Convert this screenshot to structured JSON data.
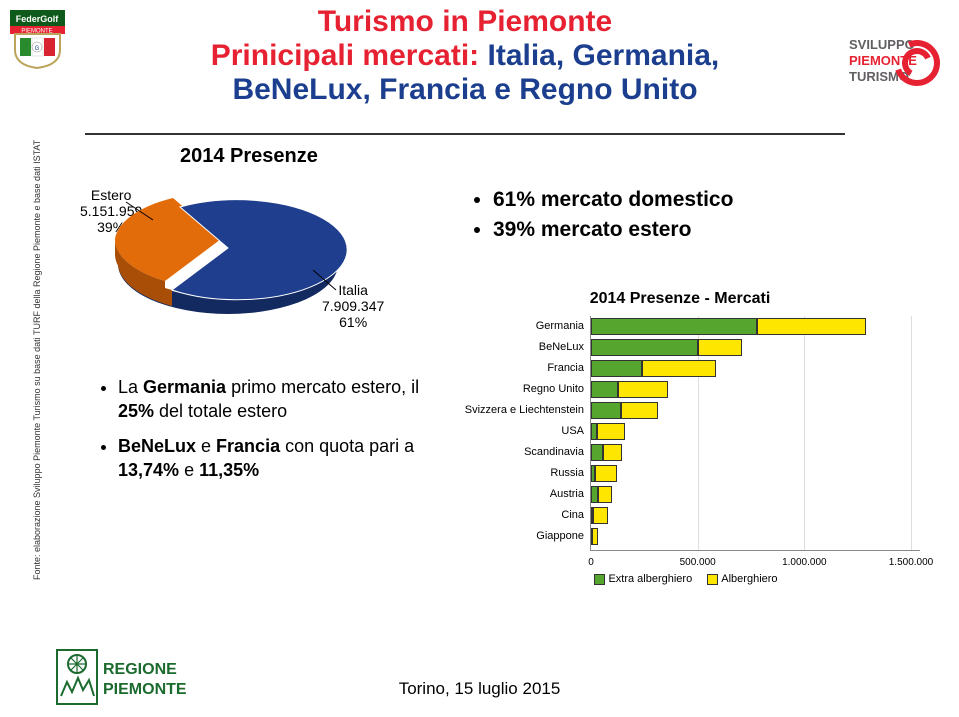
{
  "title": {
    "line1": "Turismo in Piemonte",
    "line2_red": "Prinicipali mercati: ",
    "line2_blue": "Italia, Germania,",
    "line3": "BeNeLux, Francia e Regno Unito"
  },
  "side_caption": "Fonte: elaborazione Sviluppo Piemonte Turismo su base dati TURF della Regione Piemonte e base dati ISTAT",
  "pie": {
    "type": "pie-3d",
    "title": "2014 Presenze",
    "slices": [
      {
        "label": "Estero",
        "value_text": "5.151.959",
        "pct_text": "39%",
        "pct": 39,
        "color": "#e26b0a"
      },
      {
        "label": "Italia",
        "value_text": "7.909.347",
        "pct_text": "61%",
        "pct": 61,
        "color": "#1f3f8e"
      }
    ],
    "background_color": "#ffffff"
  },
  "bullets_right": [
    "61% mercato domestico",
    "39% mercato estero"
  ],
  "bullets_left": [
    {
      "pre": "La ",
      "bold1": "Germania",
      "mid": " primo mercato estero, il ",
      "bold2": "25%",
      "post": " del totale estero"
    },
    {
      "pre": "",
      "bold1": "BeNeLux",
      "mid": " e ",
      "bold2": "Francia",
      "post": " con quota pari a ",
      "bold3": "13,74%",
      "post2": " e ",
      "bold4": "11,35%"
    }
  ],
  "barchart": {
    "type": "bar-horizontal-stacked",
    "title": "2014 Presenze - Mercati",
    "xlim": [
      0,
      1500000
    ],
    "xticks": [
      {
        "v": 0,
        "label": "0"
      },
      {
        "v": 500000,
        "label": "500.000"
      },
      {
        "v": 1000000,
        "label": "1.000.000"
      },
      {
        "v": 1500000,
        "label": "1.500.000"
      }
    ],
    "series": [
      {
        "name": "Extra alberghiero",
        "color": "#56a52e"
      },
      {
        "name": "Alberghiero",
        "color": "#ffe600"
      }
    ],
    "rows": [
      {
        "label": "Germania",
        "extra": 780000,
        "alb": 510000
      },
      {
        "label": "BeNeLux",
        "extra": 500000,
        "alb": 210000
      },
      {
        "label": "Francia",
        "extra": 240000,
        "alb": 345000
      },
      {
        "label": "Regno Unito",
        "extra": 125000,
        "alb": 235000
      },
      {
        "label": "Svizzera e Liechtenstein",
        "extra": 140000,
        "alb": 175000
      },
      {
        "label": "USA",
        "extra": 30000,
        "alb": 130000
      },
      {
        "label": "Scandinavia",
        "extra": 55000,
        "alb": 90000
      },
      {
        "label": "Russia",
        "extra": 20000,
        "alb": 100000
      },
      {
        "label": "Austria",
        "extra": 35000,
        "alb": 65000
      },
      {
        "label": "Cina",
        "extra": 8000,
        "alb": 72000
      },
      {
        "label": "Giappone",
        "extra": 5000,
        "alb": 30000
      }
    ],
    "grid_color": "#dddddd",
    "label_fontsize": 11
  },
  "logos": {
    "left_top_bg": "#0e5a1a",
    "left_top_it_bg": "#e62232",
    "right_text1": "SVILUPPO",
    "right_text2": "PIEMONTE",
    "right_text3": "TURISMO",
    "right_color_gray": "#625f62",
    "right_color_red": "#e62232",
    "footer_text1": "REGIONE",
    "footer_text2": "PIEMONTE",
    "footer_color": "#1b6b2e"
  },
  "footer": "Torino, 15 luglio 2015"
}
